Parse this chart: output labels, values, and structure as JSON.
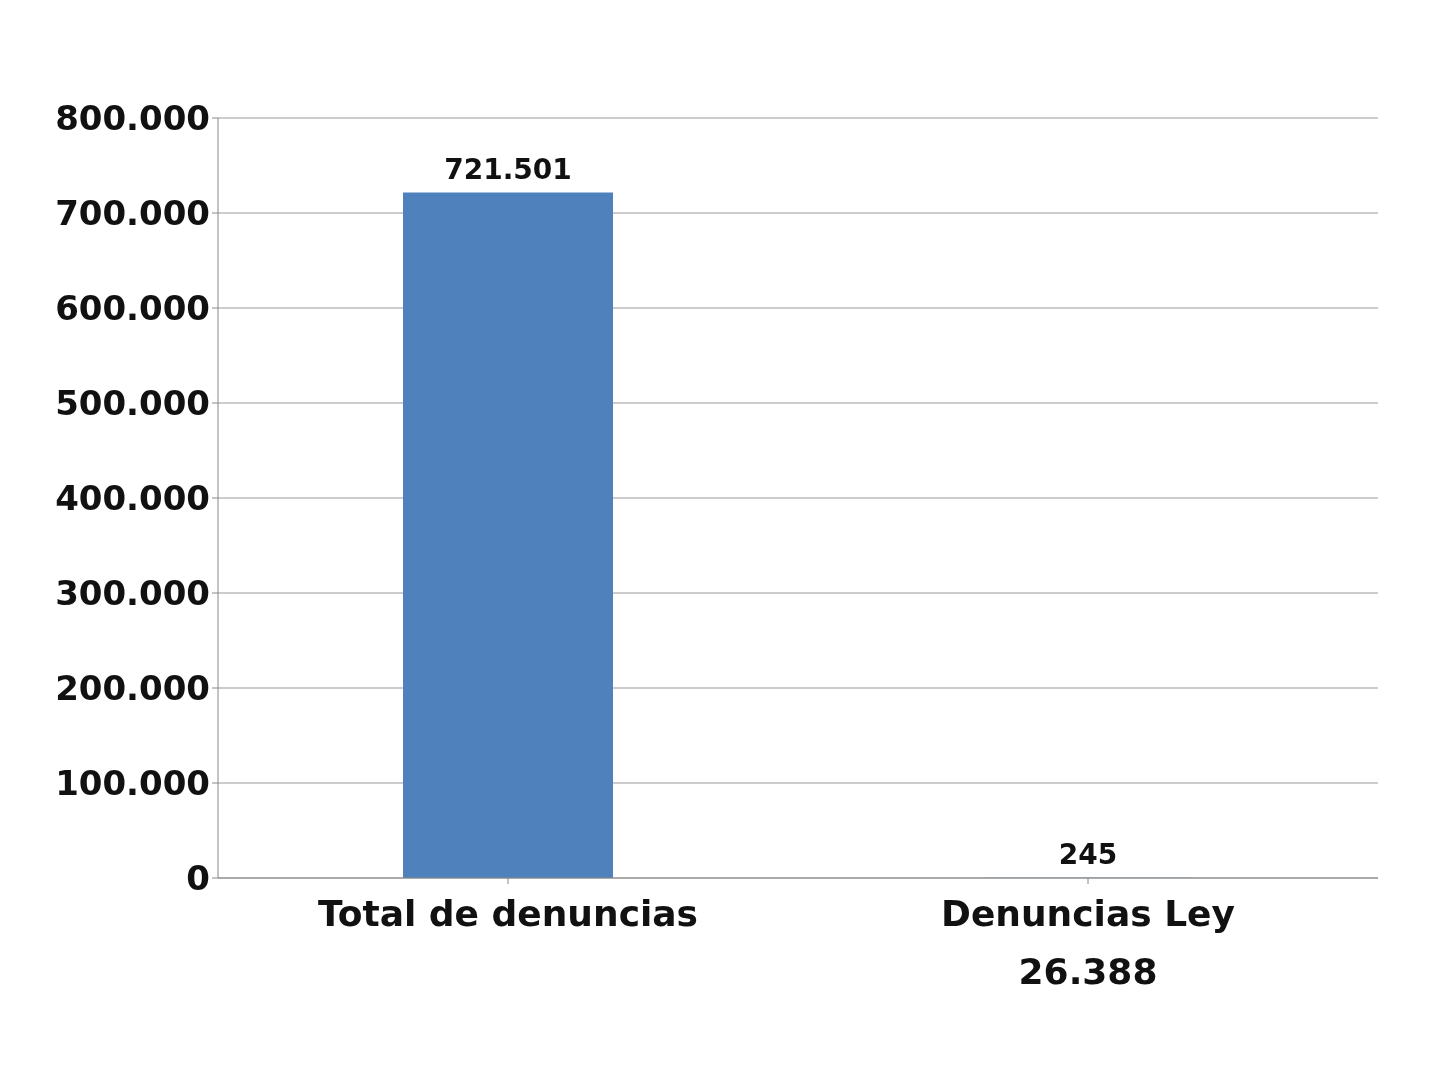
{
  "chart_data": {
    "type": "bar",
    "categories": [
      "Total de denuncias",
      "Denuncias Ley 26.388"
    ],
    "values": [
      721501,
      245
    ],
    "value_labels": [
      "721.501",
      "245"
    ],
    "color": "#4f81bd",
    "ylim": [
      0,
      800000
    ],
    "yticks": [
      0,
      {
        "value": 100000,
        "label": "100.000"
      },
      {
        "value": 200000,
        "label": "200.000"
      },
      {
        "value": 300000,
        "label": "300.000"
      },
      {
        "value": 400000,
        "label": "400.000"
      },
      {
        "value": 500000,
        "label": "500.000"
      },
      {
        "value": 600000,
        "label": "600.000"
      },
      {
        "value": 700000,
        "label": "700.000"
      },
      {
        "value": 800000,
        "label": "800.000"
      }
    ],
    "grid": "y",
    "legend": false
  }
}
